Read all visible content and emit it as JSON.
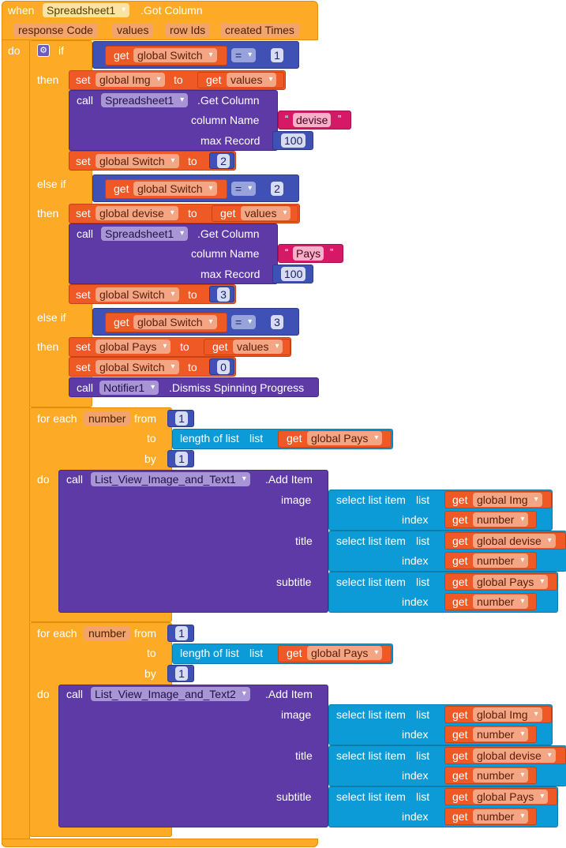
{
  "event": {
    "when": "when",
    "component": "Spreadsheet1",
    "event_name": ".Got Column",
    "params": [
      "response Code",
      "values",
      "row Ids",
      "created Times"
    ],
    "do": "do"
  },
  "kw": {
    "if": "if",
    "then": "then",
    "else_if": "else if",
    "get": "get",
    "set": "set",
    "to": "to",
    "call": "call",
    "eq": "=",
    "column_name": "column Name",
    "max_record": "max Record",
    "for_each": "for each",
    "from": "from",
    "by": "by",
    "do": "do",
    "length_of_list": "length of list",
    "list": "list",
    "select_list_item": "select list item",
    "index": "index",
    "image": "image",
    "title": "title",
    "subtitle": "subtitle",
    "get_column": ".Get Column",
    "add_item": ".Add Item",
    "dismiss": ".Dismiss Spinning Progress",
    "quote_open": "“",
    "quote_close": "”"
  },
  "vars": {
    "switch": "global Switch",
    "img": "global Img",
    "devise": "global devise",
    "pays": "global Pays",
    "values": "values",
    "number": "number"
  },
  "branches": [
    {
      "cond": "1",
      "target": "global Img",
      "column": "devise",
      "max": "100",
      "next": "2"
    },
    {
      "cond": "2",
      "target": "global devise",
      "column": "Pays",
      "max": "100",
      "next": "3"
    },
    {
      "cond": "3",
      "target": "global Pays",
      "next": "0",
      "notifier": "Notifier1"
    }
  ],
  "spreadsheet": "Spreadsheet1",
  "loops": [
    {
      "var": "number",
      "from": "1",
      "by": "1",
      "list": "global Pays",
      "component": "List_View_Image_and_Text1",
      "image": "global Img",
      "title": "global devise",
      "subtitle": "global Pays"
    },
    {
      "var": "number",
      "from": "1",
      "by": "1",
      "list": "global Pays",
      "component": "List_View_Image_and_Text2",
      "image": "global Img",
      "title": "global devise",
      "subtitle": "global Pays"
    }
  ]
}
